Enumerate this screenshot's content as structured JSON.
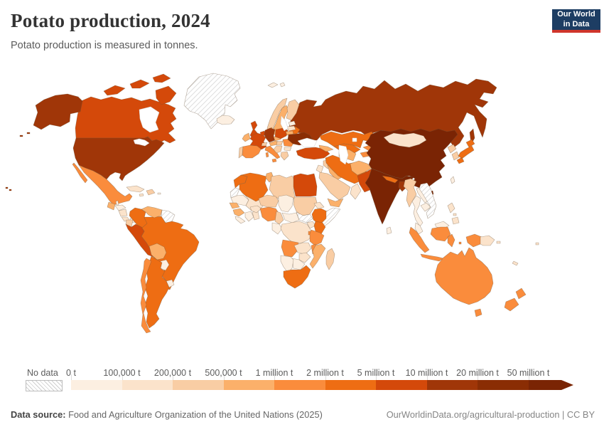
{
  "header": {
    "title": "Potato production, 2024",
    "subtitle": "Potato production is measured in tonnes.",
    "logo": {
      "line1": "Our World",
      "line2": "in Data",
      "bg": "#1d3d63",
      "accent": "#d0352b"
    }
  },
  "legend": {
    "no_data_label": "No data",
    "tick_labels": [
      "0 t",
      "100,000 t",
      "200,000 t",
      "500,000 t",
      "1 million t",
      "2 million t",
      "5 million t",
      "10 million t",
      "20 million t",
      "50 million t"
    ]
  },
  "footer": {
    "source_label": "Data source:",
    "source_text": " Food and Agriculture Organization of the United Nations (2025)",
    "link_text": "OurWorldinData.org/agricultural-production | CC BY"
  },
  "map": {
    "border_color": "rgba(110,85,60,.5)",
    "nodata_key": "no-data",
    "bucket_order": [
      "0-100k",
      "100k-200k",
      "200k-500k",
      "500k-1M",
      "1M-2M",
      "2M-5M",
      "5M-10M",
      "10M-20M",
      "20M-50M",
      "50M+"
    ],
    "palette": {
      "0-100k": "#fcefe1",
      "100k-200k": "#fbe3cb",
      "200k-500k": "#f9cda4",
      "500k-1M": "#fbb06a",
      "1M-2M": "#fa8c3c",
      "2M-5M": "#ee6d13",
      "5M-10M": "#d4490a",
      "10M-20M": "#a03608",
      "20M-50M": "#8a2d04",
      "50M+": "#7a2404"
    }
  },
  "chart_data": {
    "type": "choropleth_map",
    "title": "Potato production, 2024",
    "subtitle": "Potato production is measured in tonnes.",
    "unit": "tonnes",
    "year": 2024,
    "projection": "world",
    "legend_position": "bottom",
    "bins": [
      "0 t",
      "100,000 t",
      "200,000 t",
      "500,000 t",
      "1 million t",
      "2 million t",
      "5 million t",
      "10 million t",
      "20 million t",
      "50 million t"
    ],
    "values": {
      "greenland": "no-data",
      "canada": "5M-10M",
      "united-states": "10M-20M",
      "mexico": "1M-2M",
      "guatemala": "500k-1M",
      "belize": "0-100k",
      "honduras": "0-100k",
      "nicaragua": "100k-200k",
      "costa-rica": "100k-200k",
      "panama": "0-100k",
      "cuba": "100k-200k",
      "jamaica": "100k-200k",
      "hispaniola": "200k-500k",
      "puerto-rico": "0-100k",
      "colombia": "2M-5M",
      "venezuela": "500k-1M",
      "guyana-region": "no-data",
      "ecuador": "200k-500k",
      "peru": "5M-10M",
      "brazil": "2M-5M",
      "bolivia": "500k-1M",
      "paraguay": "0-100k",
      "uruguay": "0-100k",
      "argentina": "2M-5M",
      "chile": "1M-2M",
      "iceland": "0-100k",
      "svalbard": "0-100k",
      "norway": "200k-500k",
      "sweden": "500k-1M",
      "finland": "200k-500k",
      "estonia": "0-100k",
      "latvia": "100k-200k",
      "lithuania": "500k-1M",
      "denmark": "2M-5M",
      "united-kingdom": "5M-10M",
      "ireland": "500k-1M",
      "portugal": "200k-500k",
      "spain": "1M-2M",
      "france": "5M-10M",
      "benelux": "5M-10M",
      "germany": "10M-20M",
      "switzerland": "200k-500k",
      "czechia": "500k-1M",
      "austria": "500k-1M",
      "italy": "1M-2M",
      "poland": "5M-10M",
      "hungary": "200k-500k",
      "romania": "1M-2M",
      "balkans": "200k-500k",
      "bulgaria": "100k-200k",
      "greece": "200k-500k",
      "belarus": "2M-5M",
      "ukraine": "20M-50M",
      "russia": "10M-20M",
      "turkey": "5M-10M",
      "caucasus": "500k-1M",
      "syria": "200k-500k",
      "iraq": "500k-1M",
      "jordan": "100k-200k",
      "saudi-arabia": "200k-500k",
      "yemen": "500k-1M",
      "oman": "100k-200k",
      "iran": "2M-5M",
      "afghanistan": "500k-1M",
      "pakistan": "5M-10M",
      "turkmenistan": "500k-1M",
      "uzbekistan": "2M-5M",
      "kazakhstan": "2M-5M",
      "kyrgyzstan": "1M-2M",
      "tajikistan": "1M-2M",
      "india": "50M+",
      "nepal": "2M-5M",
      "bangladesh": "10M-20M",
      "sri-lanka": "0-100k",
      "china": "50M+",
      "mongolia": "100k-200k",
      "north-korea": "200k-500k",
      "south-korea": "200k-500k",
      "taiwan": "0-100k",
      "japan": "2M-5M",
      "myanmar": "200k-500k",
      "thailand": "0-100k",
      "laos": "0-100k",
      "cambodia": "0-100k",
      "vietnam": "no-data",
      "malaysia": "0-100k",
      "indonesia": "1M-2M",
      "philippines": "100k-200k",
      "papua-new-guinea": "100k-200k",
      "australia": "1M-2M",
      "new-zealand": "1M-2M",
      "fiji": "100k-200k",
      "new-caledonia": "100k-200k",
      "morocco": "2M-5M",
      "western-sahara": "no-data",
      "algeria": "2M-5M",
      "tunisia": "500k-1M",
      "libya": "200k-500k",
      "egypt": "5M-10M",
      "mauritania": "0-100k",
      "mali": "100k-200k",
      "senegal": "500k-1M",
      "guinea": "500k-1M",
      "sierra-leone-liberia": "0-100k",
      "ivory-coast": "0-100k",
      "ghana": "100k-200k",
      "burkina-faso": "100k-200k",
      "niger": "200k-500k",
      "nigeria": "1M-2M",
      "chad": "0-100k",
      "sudan": "200k-500k",
      "eritrea": "100k-200k",
      "ethiopia": "2M-5M",
      "somalia": "no-data",
      "south-sudan": "no-data",
      "central-african-republic": "0-100k",
      "cameroon": "200k-500k",
      "uganda": "100k-200k",
      "kenya": "2M-5M",
      "congo-gabon": "0-100k",
      "drc": "100k-200k",
      "rwanda-burundi": "1M-2M",
      "tanzania": "1M-2M",
      "angola": "1M-2M",
      "zambia": "100k-200k",
      "malawi": "1M-2M",
      "mozambique": "500k-1M",
      "zimbabwe": "100k-200k",
      "botswana": "0-100k",
      "namibia": "0-100k",
      "south-africa": "2M-5M",
      "madagascar": "200k-500k"
    }
  }
}
